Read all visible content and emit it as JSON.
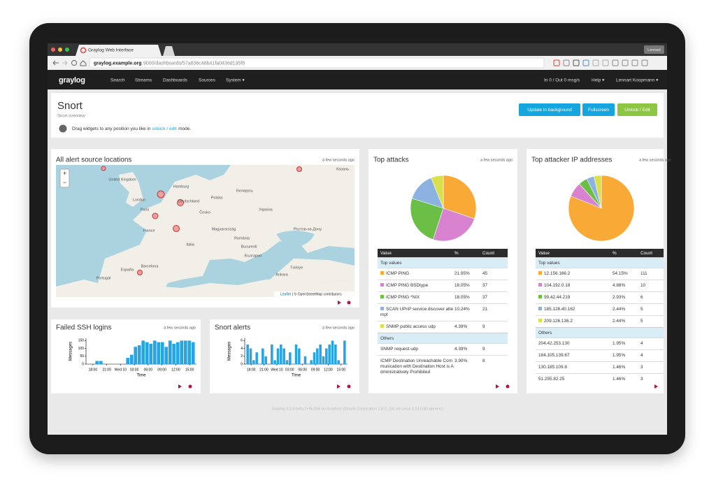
{
  "browser": {
    "tab_title": "Graylog Web Interface",
    "url_host": "graylog.example.org",
    "url_path": ":9000/dashboards/57a836c48b41fa0436d135f8",
    "profile": "Lennart"
  },
  "nav": {
    "logo": "graylog",
    "items": [
      "Search",
      "Streams",
      "Dashboards",
      "Sources",
      "System ▾"
    ],
    "throughput": "In 0 / Out 0 msg/s",
    "help": "Help ▾",
    "user": "Lennart Koopmann ▾"
  },
  "header": {
    "title": "Snort",
    "subtitle": "Snort overview",
    "hint_prefix": "Drag widgets to any position you like in",
    "hint_link": "unlock / edit",
    "hint_suffix": "mode.",
    "buttons": [
      "Update in background",
      "Fullscreen",
      "Unlock / Edit"
    ]
  },
  "map": {
    "title": "All alert source locations",
    "updated": "a few seconds ago",
    "zoom": [
      "+",
      "−"
    ],
    "labels": [
      "United Kingdom",
      "London",
      "Hamburg",
      "Deutschland",
      "Polska",
      "Беларусь",
      "Paris",
      "Česko",
      "France",
      "Magyarország",
      "Україна",
      "Ростов-на-Дону",
      "România",
      "Italia",
      "Bucuresti",
      "България",
      "Barcelona",
      "España",
      "Portugal",
      "Ankara",
      "Türkiye",
      "Казань"
    ],
    "attribution_link": "Leaflet",
    "attribution": "| © OpenStreetMap contributors"
  },
  "ssh": {
    "title": "Failed SSH logins",
    "updated": "a few seconds ago",
    "y_label": "Messages",
    "x_label": "Time",
    "ylim": [
      0,
      165
    ],
    "yticks": [
      0,
      50,
      100,
      150
    ],
    "xticks": [
      "18:00",
      "21:00",
      "Wed 10",
      "03:00",
      "06:00",
      "09:00",
      "12:00",
      "15:00"
    ],
    "color": "#27a5e2",
    "values": [
      0,
      0,
      20,
      20,
      0,
      0,
      0,
      0,
      0,
      0,
      40,
      60,
      110,
      120,
      150,
      140,
      130,
      150,
      140,
      140,
      110,
      150,
      130,
      140,
      150,
      150,
      150,
      140
    ]
  },
  "alerts": {
    "title": "Snort alerts",
    "updated": "a few seconds ago",
    "y_label": "Messages",
    "x_label": "Time",
    "ylim": [
      0,
      6.6
    ],
    "yticks": [
      0,
      2,
      4,
      6
    ],
    "xticks": [
      "18:00",
      "21:00",
      "Wed 10",
      "03:00",
      "06:00",
      "09:00",
      "12:00",
      "15:00"
    ],
    "color": "#27a5e2",
    "values": [
      5,
      4,
      1,
      3,
      0,
      4,
      2,
      0,
      5,
      1,
      4,
      5,
      4,
      1,
      3,
      0,
      5,
      4,
      0,
      2,
      0,
      1,
      3,
      4,
      5,
      2,
      4,
      5,
      6,
      5,
      1,
      0,
      6
    ]
  },
  "attacks": {
    "title": "Top attacks",
    "updated": "a few seconds ago",
    "columns": [
      "Value",
      "%",
      "Count"
    ],
    "top_label": "Top values",
    "others_label": "Others",
    "top": [
      {
        "value": "ICMP PING",
        "pct": "21.95%",
        "count": 45,
        "color": "#f9a936"
      },
      {
        "value": "ICMP PING BSDtype",
        "pct": "18.05%",
        "count": 37,
        "color": "#d882d0"
      },
      {
        "value": "ICMP PING *NIX",
        "pct": "18.05%",
        "count": 37,
        "color": "#6cbf46"
      },
      {
        "value": "SCAN UPnP service discover attempt",
        "pct": "10.24%",
        "count": 21,
        "color": "#8cb2e2"
      },
      {
        "value": "SNMP public access udp",
        "pct": "4.39%",
        "count": 9,
        "color": "#d8e04b"
      }
    ],
    "others": [
      {
        "value": "SNMP request udp",
        "pct": "4.39%",
        "count": 9
      },
      {
        "value": "ICMP Destination Unreachable Communication with Destination Host is Administratively Prohibited",
        "pct": "3.90%",
        "count": 8
      }
    ]
  },
  "ips": {
    "title": "Top attacker IP addresses",
    "updated": "a few seconds ago",
    "columns": [
      "Value",
      "%",
      "Count"
    ],
    "top_label": "Top values",
    "others_label": "Others",
    "top": [
      {
        "value": "12.156.166.2",
        "pct": "54.15%",
        "count": 111,
        "color": "#f9a936"
      },
      {
        "value": "104.192.0.18",
        "pct": "4.88%",
        "count": 10,
        "color": "#d882d0"
      },
      {
        "value": "99.42.44.219",
        "pct": "2.93%",
        "count": 6,
        "color": "#6cbf46"
      },
      {
        "value": "185.128.40.162",
        "pct": "2.44%",
        "count": 5,
        "color": "#8cb2e2"
      },
      {
        "value": "209.126.136.2",
        "pct": "2.44%",
        "count": 5,
        "color": "#d8e04b"
      }
    ],
    "others": [
      {
        "value": "204.42.253.130",
        "pct": "1.95%",
        "count": 4
      },
      {
        "value": "184.105.139.67",
        "pct": "1.95%",
        "count": 4
      },
      {
        "value": "130.185.109.8",
        "pct": "1.46%",
        "count": 3
      },
      {
        "value": "51.255.82.25",
        "pct": "1.46%",
        "count": 3
      }
    ]
  },
  "footer": "Graylog 3.1.0-beta.2+f6c055 on localhost (Oracle Corporation 1.8.0_191 on Linux 3.13.0-83-generic)"
}
